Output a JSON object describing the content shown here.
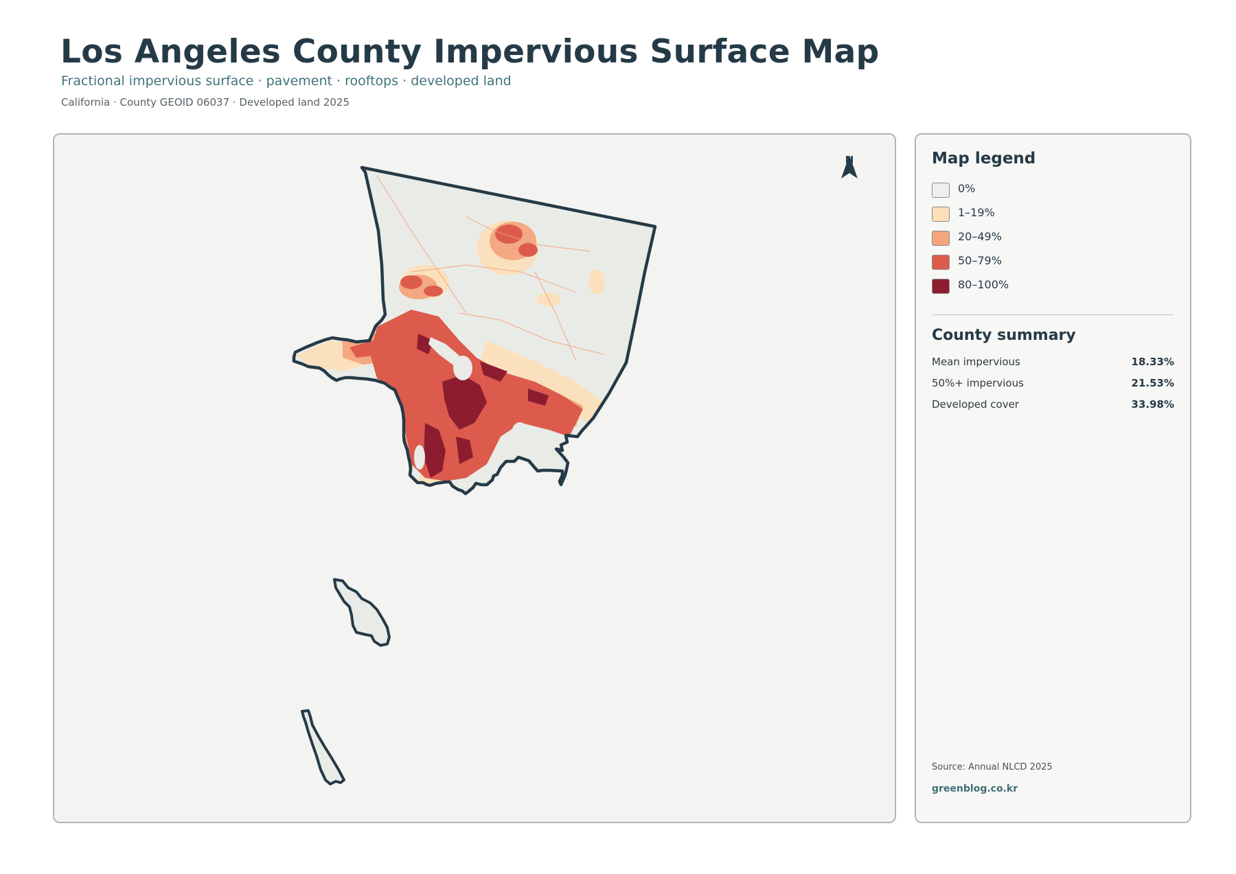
{
  "header": {
    "title": "Los Angeles County Impervious Surface Map",
    "subtitle": "Fractional impervious surface · pavement · rooftops · developed land",
    "meta": "California · County GEOID 06037 · Developed land 2025"
  },
  "map": {
    "north_label": "N",
    "boundary_color": "#253a47",
    "land_color": "#e9ebe7",
    "background_color": "#f3f3f1"
  },
  "legend": {
    "title": "Map legend",
    "items": [
      {
        "label": "0%",
        "color": "#efefed"
      },
      {
        "label": "1–19%",
        "color": "#fddfb9"
      },
      {
        "label": "20–49%",
        "color": "#f4a57e"
      },
      {
        "label": "50–79%",
        "color": "#dc5b4c"
      },
      {
        "label": "80–100%",
        "color": "#8e1c30"
      }
    ]
  },
  "summary": {
    "title": "County summary",
    "rows": [
      {
        "label": "Mean impervious",
        "value": "18.33%"
      },
      {
        "label": "50%+ impervious",
        "value": "21.53%"
      },
      {
        "label": "Developed cover",
        "value": "33.98%"
      }
    ]
  },
  "footer": {
    "source": "Source: Annual NLCD 2025",
    "site": "greenblog.co.kr"
  }
}
